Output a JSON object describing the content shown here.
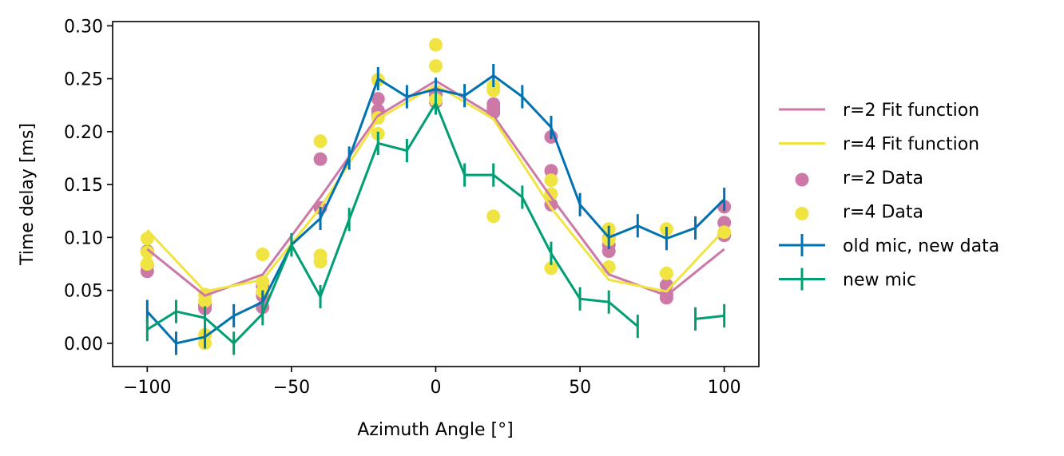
{
  "chart_data": {
    "type": "line",
    "xlabel": "Azimuth Angle [$^\\circ$]",
    "xlabel_display": "Azimuth Angle [°]",
    "ylabel": "Time delay [ms]",
    "xlim": [
      -112,
      112
    ],
    "ylim": [
      -0.022,
      0.304
    ],
    "xticks": [
      -100,
      -50,
      0,
      50,
      100
    ],
    "xtick_labels": [
      "−100",
      "−50",
      "0",
      "50",
      "100"
    ],
    "yticks": [
      0.0,
      0.05,
      0.1,
      0.15,
      0.2,
      0.25,
      0.3
    ],
    "ytick_labels": [
      "0.00",
      "0.05",
      "0.10",
      "0.15",
      "0.20",
      "0.25",
      "0.30"
    ],
    "grid": false,
    "legend_position": "outside-right",
    "fits": [
      {
        "name": "r=2 Fit function",
        "color": "#cc79a7",
        "x": [
          -100,
          -80,
          -60,
          -40,
          -20,
          0,
          20,
          40,
          60,
          80,
          100
        ],
        "y": [
          0.089,
          0.045,
          0.065,
          0.138,
          0.215,
          0.248,
          0.215,
          0.138,
          0.065,
          0.045,
          0.089
        ]
      },
      {
        "name": "r=4 Fit function",
        "color": "#f0e442",
        "x": [
          -100,
          -80,
          -60,
          -40,
          -20,
          0,
          20,
          40,
          60,
          80,
          100
        ],
        "y": [
          0.107,
          0.049,
          0.06,
          0.128,
          0.212,
          0.244,
          0.212,
          0.128,
          0.06,
          0.049,
          0.107
        ]
      }
    ],
    "scatter": [
      {
        "name": "r=2 Data",
        "color": "#cc79a7",
        "points": [
          [
            -100,
            0.068
          ],
          [
            -100,
            0.074
          ],
          [
            -100,
            0.087
          ],
          [
            -80,
            0.033
          ],
          [
            -80,
            0.036
          ],
          [
            -60,
            0.034
          ],
          [
            -60,
            0.045
          ],
          [
            -60,
            0.054
          ],
          [
            -40,
            0.128
          ],
          [
            -40,
            0.174
          ],
          [
            -20,
            0.215
          ],
          [
            -20,
            0.22
          ],
          [
            -20,
            0.231
          ],
          [
            0,
            0.228
          ],
          [
            0,
            0.235
          ],
          [
            0,
            0.238
          ],
          [
            20,
            0.218
          ],
          [
            20,
            0.222
          ],
          [
            20,
            0.226
          ],
          [
            40,
            0.131
          ],
          [
            40,
            0.163
          ],
          [
            40,
            0.195
          ],
          [
            60,
            0.087
          ],
          [
            60,
            0.093
          ],
          [
            60,
            0.099
          ],
          [
            80,
            0.043
          ],
          [
            80,
            0.046
          ],
          [
            80,
            0.055
          ],
          [
            100,
            0.102
          ],
          [
            100,
            0.114
          ],
          [
            100,
            0.129
          ]
        ]
      },
      {
        "name": "r=4 Data",
        "color": "#f0e442",
        "points": [
          [
            -100,
            0.075
          ],
          [
            -100,
            0.086
          ],
          [
            -100,
            0.099
          ],
          [
            -80,
            0.0
          ],
          [
            -80,
            0.008
          ],
          [
            -80,
            0.04
          ],
          [
            -80,
            0.046
          ],
          [
            -60,
            0.049
          ],
          [
            -60,
            0.058
          ],
          [
            -60,
            0.084
          ],
          [
            -40,
            0.077
          ],
          [
            -40,
            0.083
          ],
          [
            -40,
            0.191
          ],
          [
            -20,
            0.198
          ],
          [
            -20,
            0.213
          ],
          [
            -20,
            0.249
          ],
          [
            0,
            0.23
          ],
          [
            0,
            0.262
          ],
          [
            0,
            0.282
          ],
          [
            20,
            0.12
          ],
          [
            20,
            0.239
          ],
          [
            20,
            0.243
          ],
          [
            40,
            0.071
          ],
          [
            40,
            0.141
          ],
          [
            40,
            0.154
          ],
          [
            60,
            0.072
          ],
          [
            60,
            0.098
          ],
          [
            60,
            0.108
          ],
          [
            80,
            0.066
          ],
          [
            80,
            0.108
          ],
          [
            100,
            0.105
          ]
        ]
      }
    ],
    "errorbar_series": [
      {
        "name": "old mic, new data",
        "color": "#0072b2",
        "segments": [
          [
            [
              -100,
              0.03
            ],
            [
              -90,
              0.0
            ],
            [
              -80,
              0.006
            ],
            [
              -70,
              0.026
            ],
            [
              -60,
              0.039
            ],
            [
              -50,
              0.093
            ],
            [
              -40,
              0.118
            ],
            [
              -30,
              0.175
            ],
            [
              -20,
              0.25
            ],
            [
              -10,
              0.233
            ],
            [
              0,
              0.24
            ],
            [
              10,
              0.234
            ],
            [
              20,
              0.253
            ],
            [
              30,
              0.233
            ],
            [
              40,
              0.204
            ],
            [
              50,
              0.131
            ],
            [
              60,
              0.1
            ],
            [
              70,
              0.111
            ],
            [
              80,
              0.099
            ],
            [
              90,
              0.109
            ],
            [
              100,
              0.136
            ]
          ]
        ],
        "yerr": 0.011
      },
      {
        "name": "new mic",
        "color": "#009e73",
        "segments": [
          [
            [
              -100,
              0.013
            ],
            [
              -90,
              0.03
            ],
            [
              -80,
              0.024
            ],
            [
              -70,
              0.0
            ],
            [
              -60,
              0.028
            ],
            [
              -50,
              0.093
            ],
            [
              -40,
              0.044
            ],
            [
              -30,
              0.117
            ],
            [
              -20,
              0.189
            ],
            [
              -10,
              0.182
            ],
            [
              0,
              0.227
            ],
            [
              10,
              0.159
            ],
            [
              20,
              0.159
            ],
            [
              30,
              0.138
            ],
            [
              40,
              0.085
            ],
            [
              50,
              0.042
            ],
            [
              60,
              0.039
            ],
            [
              70,
              0.016
            ]
          ],
          [
            [
              90,
              0.023
            ],
            [
              100,
              0.026
            ]
          ]
        ],
        "yerr": 0.011
      }
    ]
  }
}
